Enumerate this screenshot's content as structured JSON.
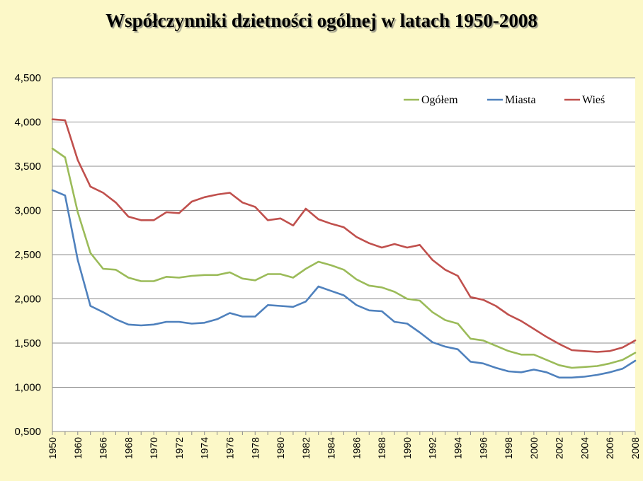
{
  "chart_data": {
    "type": "line",
    "title": "Współczynniki dzietności ogólnej w latach 1950-2008",
    "xlabel": "",
    "ylabel": "",
    "ylim": [
      0.5,
      4.5
    ],
    "yticks": [
      0.5,
      1.0,
      1.5,
      2.0,
      2.5,
      3.0,
      3.5,
      4.0,
      4.5
    ],
    "ytick_labels": [
      "0,500",
      "1,000",
      "1,500",
      "2,000",
      "2,500",
      "3,000",
      "3,500",
      "4,000",
      "4,500"
    ],
    "grid": true,
    "legend_position": "top-right",
    "categories": [
      "1950",
      "1955",
      "1960",
      "1965",
      "1966",
      "1967",
      "1968",
      "1969",
      "1970",
      "1971",
      "1972",
      "1973",
      "1974",
      "1975",
      "1976",
      "1977",
      "1978",
      "1979",
      "1980",
      "1981",
      "1982",
      "1983",
      "1984",
      "1985",
      "1986",
      "1987",
      "1988",
      "1989",
      "1990",
      "1991",
      "1992",
      "1993",
      "1994",
      "1995",
      "1996",
      "1997",
      "1998",
      "1999",
      "2000",
      "2001",
      "2002",
      "2003",
      "2004",
      "2005",
      "2006",
      "2007",
      "2008"
    ],
    "tick_labels": [
      "1950",
      "1960",
      "1966",
      "1968",
      "1970",
      "1972",
      "1974",
      "1976",
      "1978",
      "1980",
      "1982",
      "1984",
      "1986",
      "1988",
      "1990",
      "1992",
      "1994",
      "1996",
      "1998",
      "2000",
      "2002",
      "2004",
      "2006",
      "2008"
    ],
    "series": [
      {
        "name": "Ogółem",
        "color": "#9bbb59",
        "values": [
          3.7,
          3.6,
          2.98,
          2.52,
          2.34,
          2.33,
          2.24,
          2.2,
          2.2,
          2.25,
          2.24,
          2.26,
          2.27,
          2.27,
          2.3,
          2.23,
          2.21,
          2.28,
          2.28,
          2.24,
          2.34,
          2.42,
          2.38,
          2.33,
          2.22,
          2.15,
          2.13,
          2.08,
          2.0,
          1.98,
          1.85,
          1.76,
          1.72,
          1.55,
          1.53,
          1.47,
          1.41,
          1.37,
          1.37,
          1.31,
          1.25,
          1.22,
          1.23,
          1.24,
          1.27,
          1.31,
          1.39
        ]
      },
      {
        "name": "Miasta",
        "color": "#4f81bd",
        "values": [
          3.23,
          3.17,
          2.44,
          1.92,
          1.85,
          1.77,
          1.71,
          1.7,
          1.71,
          1.74,
          1.74,
          1.72,
          1.73,
          1.77,
          1.84,
          1.8,
          1.8,
          1.93,
          1.92,
          1.91,
          1.97,
          2.14,
          2.09,
          2.04,
          1.93,
          1.87,
          1.86,
          1.74,
          1.72,
          1.62,
          1.51,
          1.46,
          1.43,
          1.29,
          1.27,
          1.22,
          1.18,
          1.17,
          1.2,
          1.17,
          1.11,
          1.11,
          1.12,
          1.14,
          1.17,
          1.21,
          1.3
        ]
      },
      {
        "name": "Wieś",
        "color": "#c0504d",
        "values": [
          4.03,
          4.02,
          3.57,
          3.27,
          3.2,
          3.09,
          2.93,
          2.89,
          2.89,
          2.98,
          2.97,
          3.1,
          3.15,
          3.18,
          3.2,
          3.09,
          3.04,
          2.89,
          2.91,
          2.83,
          3.02,
          2.9,
          2.85,
          2.81,
          2.7,
          2.63,
          2.58,
          2.62,
          2.58,
          2.61,
          2.44,
          2.33,
          2.26,
          2.02,
          1.99,
          1.92,
          1.82,
          1.75,
          1.66,
          1.57,
          1.49,
          1.42,
          1.41,
          1.4,
          1.41,
          1.45,
          1.53
        ]
      }
    ]
  }
}
